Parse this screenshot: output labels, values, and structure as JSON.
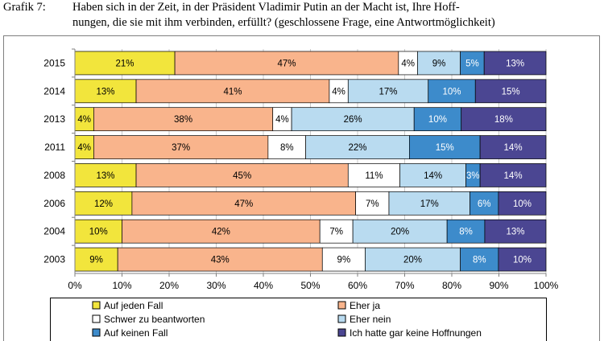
{
  "figure": {
    "label": "Grafik 7:",
    "title_line1": "Haben sich in der Zeit, in der Präsident Vladimir Putin an der Macht ist, Ihre Hoff-",
    "title_line2": "nungen, die sie mit ihm verbinden, erfüllt? (geschlossene Frage, eine Antwortmöglichkeit)"
  },
  "chart_data": {
    "type": "bar",
    "orientation": "horizontal",
    "stacking": "percent",
    "categories": [
      "2015",
      "2014",
      "2013",
      "2011",
      "2008",
      "2006",
      "2004",
      "2003"
    ],
    "series": [
      {
        "name": "Auf jeden Fall",
        "color": "#f2e53c",
        "label_color": "#000000",
        "values": [
          21,
          13,
          4,
          4,
          13,
          12,
          10,
          9
        ]
      },
      {
        "name": "Eher ja",
        "color": "#f9b48c",
        "label_color": "#000000",
        "values": [
          47,
          41,
          38,
          37,
          45,
          47,
          42,
          43
        ]
      },
      {
        "name": "Schwer zu beantworten",
        "color": "#ffffff",
        "label_color": "#000000",
        "values": [
          4,
          4,
          4,
          8,
          11,
          7,
          7,
          9
        ]
      },
      {
        "name": "Eher nein",
        "color": "#b9dbf0",
        "label_color": "#000000",
        "values": [
          9,
          17,
          26,
          22,
          14,
          17,
          20,
          20
        ]
      },
      {
        "name": "Auf keinen Fall",
        "color": "#3d8bcb",
        "label_color": "#ffffff",
        "values": [
          5,
          10,
          10,
          15,
          3,
          6,
          8,
          8
        ]
      },
      {
        "name": "Ich hatte gar keine Hoffnungen",
        "color": "#4b4692",
        "label_color": "#ffffff",
        "values": [
          13,
          15,
          18,
          14,
          14,
          10,
          13,
          10
        ]
      }
    ],
    "x_ticks": [
      "0%",
      "10%",
      "20%",
      "30%",
      "40%",
      "50%",
      "60%",
      "70%",
      "80%",
      "90%",
      "100%"
    ],
    "xlim": [
      0,
      100
    ],
    "grid": "vertical",
    "legend": "bottom"
  }
}
